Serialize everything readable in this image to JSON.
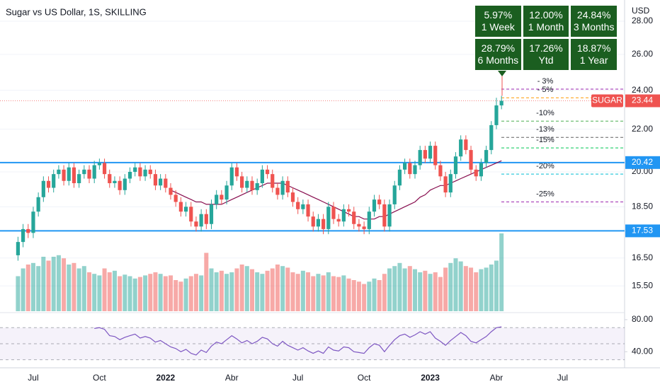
{
  "chart_data": {
    "type": "candlestick",
    "title": "Sugar vs US Dollar, 1S, SKILLING",
    "currency": "USD",
    "log_scale": true,
    "grid": true,
    "colors": {
      "up": "#26a69a",
      "down": "#ef5350"
    },
    "ylim": [
      14.65,
      29.36
    ],
    "yticks": [
      {
        "value": 28,
        "label": "28.00"
      },
      {
        "value": 26,
        "label": "26.00"
      },
      {
        "value": 24,
        "label": "24.00"
      },
      {
        "value": 22,
        "label": "22.00"
      },
      {
        "value": 20,
        "label": "20.00"
      },
      {
        "value": 18.5,
        "label": "18.50"
      },
      {
        "value": 16.5,
        "label": "16.50"
      },
      {
        "value": 15.5,
        "label": "15.50"
      }
    ],
    "categories": [
      null,
      null,
      null,
      "Jul",
      null,
      null,
      null,
      null,
      null,
      null,
      null,
      null,
      null,
      null,
      null,
      null,
      "Oct",
      null,
      null,
      null,
      null,
      null,
      null,
      null,
      null,
      null,
      null,
      null,
      null,
      "2022",
      null,
      null,
      null,
      null,
      null,
      null,
      null,
      null,
      null,
      null,
      null,
      null,
      "Abr",
      null,
      null,
      null,
      null,
      null,
      null,
      null,
      null,
      null,
      null,
      null,
      null,
      "Jul",
      null,
      null,
      null,
      null,
      null,
      null,
      null,
      null,
      null,
      null,
      null,
      null,
      "Oct",
      null,
      null,
      null,
      null,
      null,
      null,
      null,
      null,
      null,
      null,
      null,
      null,
      "2023",
      null,
      null,
      null,
      null,
      null,
      null,
      null,
      null,
      null,
      null,
      null,
      null,
      "Abr",
      null,
      null,
      null,
      null,
      null,
      null,
      null,
      null,
      null,
      null,
      null,
      null,
      "Jul"
    ],
    "open": [
      16.6,
      17.1,
      17.6,
      17.45,
      18.3,
      18.9,
      19.6,
      19.3,
      19.9,
      20.1,
      19.6,
      20.2,
      19.5,
      19.9,
      20.1,
      19.7,
      20.3,
      20.4,
      19.9,
      19.5,
      19.6,
      19.2,
      19.7,
      20.0,
      20.2,
      19.8,
      20.1,
      19.9,
      19.4,
      19.7,
      19.3,
      19.0,
      18.7,
      18.3,
      18.5,
      17.9,
      17.7,
      18.2,
      17.8,
      18.6,
      19.0,
      18.8,
      19.4,
      20.2,
      19.8,
      19.3,
      19.6,
      19.2,
      19.5,
      20.1,
      19.9,
      19.3,
      19.0,
      19.6,
      19.1,
      18.7,
      18.4,
      18.6,
      18.1,
      17.7,
      18.0,
      17.6,
      18.5,
      18.0,
      17.9,
      18.4,
      18.3,
      17.8,
      17.7,
      17.6,
      18.3,
      18.8,
      18.6,
      17.7,
      18.6,
      19.4,
      20.1,
      20.4,
      19.9,
      20.3,
      21.0,
      20.6,
      21.2,
      20.3,
      19.8,
      19.1,
      19.9,
      20.7,
      21.5,
      21.0,
      20.1,
      19.8,
      20.4,
      21.0,
      22.2,
      23.2,
      null,
      null,
      null,
      null,
      null,
      null,
      null,
      null,
      null,
      null,
      null,
      null
    ],
    "high": [
      17.3,
      17.8,
      17.8,
      18.5,
      19.1,
      19.8,
      19.8,
      20.1,
      20.3,
      20.3,
      20.4,
      20.4,
      20.1,
      20.3,
      20.3,
      20.5,
      20.6,
      20.6,
      20.1,
      19.8,
      19.8,
      19.9,
      20.2,
      20.4,
      20.4,
      20.3,
      20.3,
      20.1,
      19.9,
      19.9,
      19.5,
      19.2,
      18.9,
      18.7,
      18.7,
      18.1,
      18.4,
      18.4,
      18.8,
      19.2,
      19.2,
      19.6,
      20.4,
      20.4,
      20.0,
      19.8,
      19.8,
      19.7,
      20.3,
      20.3,
      20.1,
      19.5,
      19.8,
      19.8,
      19.3,
      18.9,
      18.8,
      18.8,
      18.3,
      18.2,
      18.2,
      18.7,
      18.7,
      18.2,
      18.6,
      18.6,
      18.5,
      18.0,
      17.9,
      18.5,
      19.0,
      19.0,
      18.8,
      18.8,
      19.6,
      20.3,
      20.6,
      20.6,
      20.5,
      21.2,
      21.2,
      21.4,
      21.4,
      20.5,
      20.0,
      20.1,
      20.9,
      21.7,
      21.7,
      21.2,
      20.3,
      20.6,
      21.2,
      22.4,
      23.6,
      23.7,
      null,
      null,
      null,
      null,
      null,
      null,
      null,
      null,
      null,
      null,
      null,
      null
    ],
    "low": [
      16.4,
      16.9,
      17.25,
      17.25,
      18.1,
      18.7,
      19.1,
      19.1,
      19.7,
      19.4,
      19.4,
      19.3,
      19.3,
      19.7,
      19.5,
      19.5,
      20.1,
      19.7,
      19.3,
      19.3,
      19.0,
      19.0,
      19.5,
      19.8,
      19.6,
      19.6,
      19.7,
      19.2,
      19.2,
      19.1,
      18.8,
      18.5,
      18.1,
      18.1,
      17.7,
      17.5,
      17.5,
      17.6,
      17.6,
      18.4,
      18.6,
      18.6,
      19.2,
      19.6,
      19.1,
      19.1,
      19.0,
      19.0,
      19.3,
      19.7,
      19.1,
      18.8,
      18.8,
      18.9,
      18.5,
      18.2,
      18.2,
      17.9,
      17.5,
      17.5,
      17.4,
      17.4,
      17.8,
      17.7,
      17.7,
      18.1,
      17.6,
      17.5,
      17.4,
      17.4,
      18.1,
      18.4,
      17.5,
      17.5,
      18.4,
      19.2,
      19.9,
      19.7,
      19.7,
      20.1,
      20.4,
      20.4,
      20.1,
      19.6,
      18.9,
      18.9,
      19.7,
      20.5,
      20.8,
      19.9,
      19.6,
      19.6,
      20.2,
      20.8,
      22.0,
      23.0,
      null,
      null,
      null,
      null,
      null,
      null,
      null,
      null,
      null,
      null,
      null,
      null
    ],
    "close": [
      17.1,
      17.6,
      17.45,
      18.3,
      18.9,
      19.6,
      19.3,
      19.9,
      20.1,
      19.6,
      20.2,
      19.5,
      19.9,
      20.1,
      19.7,
      20.3,
      20.4,
      19.9,
      19.5,
      19.6,
      19.2,
      19.7,
      20.0,
      20.2,
      19.8,
      20.1,
      19.9,
      19.4,
      19.7,
      19.3,
      19.0,
      18.7,
      18.3,
      18.5,
      17.9,
      17.7,
      18.2,
      17.8,
      18.6,
      19.0,
      18.8,
      19.4,
      20.2,
      19.8,
      19.3,
      19.6,
      19.2,
      19.5,
      20.1,
      19.9,
      19.3,
      19.0,
      19.6,
      19.1,
      18.7,
      18.4,
      18.6,
      18.1,
      17.7,
      18.0,
      17.6,
      18.5,
      18.0,
      17.9,
      18.4,
      18.3,
      17.8,
      17.7,
      17.6,
      18.3,
      18.8,
      18.6,
      17.7,
      18.6,
      19.4,
      20.1,
      20.4,
      19.9,
      20.3,
      21.0,
      20.6,
      21.2,
      20.3,
      19.8,
      19.1,
      19.9,
      20.7,
      21.5,
      21.0,
      20.1,
      19.8,
      20.4,
      21.0,
      22.2,
      23.2,
      23.44,
      null,
      null,
      null,
      null,
      null,
      null,
      null,
      null,
      null,
      null,
      null,
      null
    ],
    "volume": {
      "ylim": [
        0,
        100
      ],
      "values": [
        45,
        55,
        60,
        62,
        58,
        70,
        65,
        70,
        72,
        68,
        60,
        62,
        55,
        58,
        50,
        48,
        46,
        55,
        50,
        52,
        45,
        47,
        45,
        42,
        44,
        46,
        48,
        50,
        48,
        45,
        46,
        40,
        38,
        42,
        45,
        48,
        46,
        75,
        55,
        50,
        52,
        48,
        50,
        55,
        60,
        58,
        54,
        50,
        48,
        52,
        55,
        60,
        58,
        56,
        50,
        48,
        52,
        50,
        45,
        48,
        46,
        50,
        45,
        44,
        46,
        42,
        40,
        38,
        35,
        38,
        42,
        40,
        48,
        55,
        58,
        62,
        55,
        58,
        54,
        50,
        52,
        48,
        50,
        44,
        56,
        62,
        68,
        64,
        58,
        56,
        50,
        54,
        56,
        60,
        65,
        100,
        null,
        null,
        null,
        null,
        null,
        null,
        null,
        null,
        null,
        null,
        null,
        null
      ]
    },
    "ma": {
      "color": "#880e4f",
      "values": [
        null,
        null,
        null,
        null,
        null,
        null,
        null,
        null,
        null,
        null,
        null,
        null,
        null,
        null,
        null,
        null,
        null,
        null,
        null,
        null,
        null,
        null,
        null,
        null,
        null,
        null,
        null,
        null,
        null,
        null,
        19.2,
        19.1,
        19.0,
        18.9,
        18.8,
        18.7,
        18.7,
        18.6,
        18.6,
        18.6,
        18.6,
        18.7,
        18.8,
        18.9,
        19.0,
        19.1,
        19.2,
        19.3,
        19.4,
        19.5,
        19.5,
        19.5,
        19.5,
        19.4,
        19.3,
        19.2,
        19.1,
        19.0,
        18.9,
        18.8,
        18.7,
        18.6,
        18.5,
        18.4,
        18.3,
        18.2,
        18.1,
        18.1,
        18.0,
        18.0,
        18.0,
        18.1,
        18.1,
        18.2,
        18.3,
        18.4,
        18.5,
        18.6,
        18.7,
        18.9,
        19.0,
        19.2,
        19.3,
        19.4,
        19.4,
        19.5,
        19.6,
        19.7,
        19.8,
        19.9,
        20.0,
        20.1,
        20.2,
        20.3,
        20.4,
        20.5,
        null,
        null,
        null,
        null,
        null,
        null,
        null,
        null,
        null,
        null,
        null,
        null
      ]
    },
    "rsi": {
      "color": "#7e57c2",
      "ylim": [
        20,
        87
      ],
      "yticks": [
        {
          "value": 80,
          "label": "80.00"
        },
        {
          "value": 40,
          "label": "40.00"
        }
      ],
      "levels": [
        70,
        50,
        30
      ],
      "values": [
        null,
        null,
        null,
        null,
        null,
        null,
        null,
        null,
        null,
        null,
        null,
        null,
        null,
        null,
        null,
        69,
        70,
        68,
        60,
        59,
        55,
        58,
        60,
        62,
        57,
        59,
        57,
        52,
        54,
        50,
        46,
        44,
        40,
        43,
        38,
        36,
        42,
        39,
        47,
        52,
        50,
        55,
        60,
        56,
        51,
        54,
        50,
        53,
        58,
        56,
        50,
        47,
        53,
        48,
        45,
        42,
        45,
        41,
        38,
        41,
        38,
        46,
        42,
        41,
        46,
        45,
        40,
        39,
        38,
        45,
        50,
        48,
        40,
        48,
        55,
        60,
        62,
        58,
        61,
        65,
        62,
        65,
        57,
        53,
        48,
        54,
        59,
        64,
        60,
        53,
        51,
        55,
        59,
        65,
        70,
        71,
        null,
        null,
        null,
        null,
        null,
        null,
        null,
        null,
        null,
        null,
        null,
        null
      ]
    },
    "price_lines": {
      "color": "#2196f3",
      "values": [
        20.42,
        17.53
      ]
    },
    "last_price": {
      "name": "SUGAR",
      "value": 23.44,
      "color": "#ef5350"
    },
    "levels": [
      {
        "label": "- 3%",
        "value": 24.06,
        "color": "#9c27b0"
      },
      {
        "label": "- 5%",
        "value": 23.6,
        "color": "#ff9800"
      },
      {
        "label": "-10%",
        "value": 22.4,
        "color": "#4caf50"
      },
      {
        "label": "-13%",
        "value": 21.6,
        "color": "#616161"
      },
      {
        "label": "-15%",
        "value": 21.1,
        "color": "#00c853"
      },
      {
        "label": "-20%",
        "value": 19.9,
        "color": "#00bcd4"
      },
      {
        "label": "-25%",
        "value": 18.7,
        "color": "#9c27b0"
      }
    ],
    "performance": [
      {
        "value": "5.97%",
        "period": "1 Week"
      },
      {
        "value": "12.00%",
        "period": "1 Month"
      },
      {
        "value": "24.84%",
        "period": "3 Months"
      },
      {
        "value": "28.79%",
        "period": "6 Months"
      },
      {
        "value": "17.26%",
        "period": "Ytd"
      },
      {
        "value": "18.87%",
        "period": "1 Year"
      }
    ]
  }
}
